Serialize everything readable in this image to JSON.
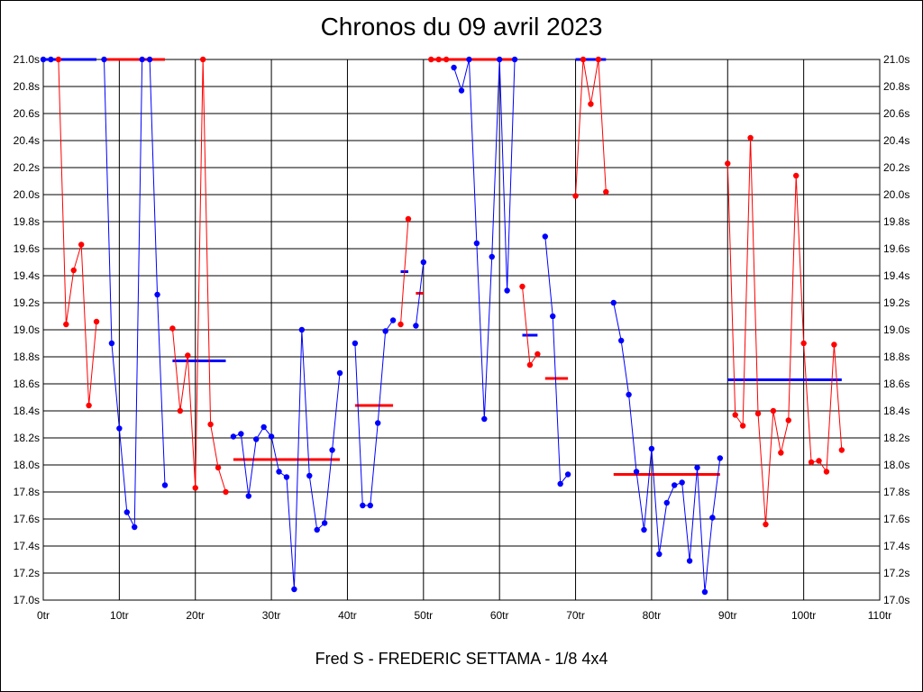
{
  "chart_data": {
    "type": "line",
    "title": "Chronos du 09 avril 2023",
    "footer": "Fred S - FREDERIC SETTAMA - 1/8 4x4",
    "xlim": [
      0,
      110
    ],
    "ylim": [
      17.0,
      21.0
    ],
    "x_ticks": [
      0,
      10,
      20,
      30,
      40,
      50,
      60,
      70,
      80,
      90,
      100,
      110
    ],
    "x_tick_labels": [
      "0tr",
      "10tr",
      "20tr",
      "30tr",
      "40tr",
      "50tr",
      "60tr",
      "70tr",
      "80tr",
      "90tr",
      "100tr",
      "110tr"
    ],
    "y_ticks": [
      17.0,
      17.2,
      17.4,
      17.6,
      17.8,
      18.0,
      18.2,
      18.4,
      18.6,
      18.8,
      19.0,
      19.2,
      19.4,
      19.6,
      19.8,
      20.0,
      20.2,
      20.4,
      20.6,
      20.8,
      21.0
    ],
    "y_tick_labels": [
      "17.0s",
      "17.2s",
      "17.4s",
      "17.6s",
      "17.8s",
      "18.0s",
      "18.2s",
      "18.4s",
      "18.6s",
      "18.8s",
      "19.0s",
      "19.2s",
      "19.4s",
      "19.6s",
      "19.8s",
      "20.0s",
      "20.2s",
      "20.4s",
      "20.6s",
      "20.8s",
      "21.0s"
    ],
    "grid": true,
    "colors": {
      "red": "#ff0000",
      "blue": "#0000ff"
    },
    "series": [
      {
        "color": "#0000ff",
        "points": [
          [
            0,
            21.0
          ],
          [
            1,
            21.0
          ]
        ]
      },
      {
        "color": "#ff0000",
        "points": [
          [
            2,
            21.0
          ],
          [
            3,
            19.04
          ],
          [
            4,
            19.44
          ],
          [
            5,
            19.63
          ],
          [
            6,
            18.44
          ],
          [
            7,
            19.06
          ]
        ]
      },
      {
        "color": "#0000ff",
        "points": [
          [
            8,
            21.0
          ],
          [
            9,
            18.9
          ],
          [
            10,
            18.27
          ],
          [
            11,
            17.65
          ],
          [
            12,
            17.54
          ],
          [
            13,
            21.0
          ],
          [
            14,
            21.0
          ],
          [
            15,
            19.26
          ],
          [
            16,
            17.85
          ]
        ]
      },
      {
        "color": "#ff0000",
        "points": [
          [
            17,
            19.01
          ],
          [
            18,
            18.4
          ],
          [
            19,
            18.81
          ],
          [
            20,
            17.83
          ],
          [
            21,
            21.0
          ],
          [
            22,
            18.3
          ],
          [
            23,
            17.98
          ],
          [
            24,
            17.8
          ]
        ]
      },
      {
        "color": "#0000ff",
        "points": [
          [
            25,
            18.21
          ],
          [
            26,
            18.23
          ],
          [
            27,
            17.77
          ],
          [
            28,
            18.19
          ],
          [
            29,
            18.28
          ],
          [
            30,
            18.21
          ],
          [
            31,
            17.95
          ],
          [
            32,
            17.91
          ],
          [
            33,
            17.08
          ],
          [
            34,
            19.0
          ],
          [
            35,
            17.92
          ],
          [
            36,
            17.52
          ],
          [
            37,
            17.57
          ],
          [
            38,
            18.11
          ],
          [
            39,
            18.68
          ]
        ]
      },
      {
        "color": "#0000ff",
        "points": [
          [
            41,
            18.9
          ],
          [
            42,
            17.7
          ],
          [
            43,
            17.7
          ],
          [
            44,
            18.31
          ],
          [
            45,
            18.99
          ],
          [
            46,
            19.07
          ]
        ]
      },
      {
        "color": "#ff0000",
        "points": [
          [
            47,
            19.04
          ],
          [
            48,
            19.82
          ]
        ]
      },
      {
        "color": "#0000ff",
        "points": [
          [
            49,
            19.03
          ],
          [
            50,
            19.5
          ]
        ]
      },
      {
        "color": "#ff0000",
        "points": [
          [
            51,
            21.0
          ],
          [
            52,
            21.0
          ],
          [
            53,
            21.0
          ]
        ]
      },
      {
        "color": "#0000ff",
        "points": [
          [
            54,
            20.94
          ],
          [
            55,
            20.77
          ],
          [
            56,
            21.0
          ],
          [
            57,
            19.64
          ],
          [
            58,
            18.34
          ],
          [
            59,
            19.54
          ],
          [
            60,
            21.0
          ],
          [
            61,
            19.29
          ],
          [
            62,
            21.0
          ]
        ]
      },
      {
        "color": "#ff0000",
        "points": [
          [
            63,
            19.32
          ],
          [
            64,
            18.74
          ],
          [
            65,
            18.82
          ]
        ]
      },
      {
        "color": "#0000ff",
        "points": [
          [
            66,
            19.69
          ],
          [
            67,
            19.1
          ],
          [
            68,
            17.86
          ],
          [
            69,
            17.93
          ]
        ]
      },
      {
        "color": "#ff0000",
        "points": [
          [
            70,
            19.99
          ],
          [
            71,
            21.0
          ],
          [
            72,
            20.67
          ],
          [
            73,
            21.0
          ],
          [
            74,
            20.02
          ]
        ]
      },
      {
        "color": "#0000ff",
        "points": [
          [
            75,
            19.2
          ],
          [
            76,
            18.92
          ],
          [
            77,
            18.52
          ],
          [
            78,
            17.95
          ],
          [
            79,
            17.52
          ],
          [
            80,
            18.12
          ],
          [
            81,
            17.34
          ],
          [
            82,
            17.72
          ],
          [
            83,
            17.85
          ],
          [
            84,
            17.87
          ],
          [
            85,
            17.29
          ],
          [
            86,
            17.98
          ],
          [
            87,
            17.06
          ],
          [
            88,
            17.61
          ],
          [
            89,
            18.05
          ]
        ]
      },
      {
        "color": "#ff0000",
        "points": [
          [
            90,
            20.23
          ],
          [
            91,
            18.37
          ],
          [
            92,
            18.29
          ],
          [
            93,
            20.42
          ],
          [
            94,
            18.38
          ],
          [
            95,
            17.56
          ],
          [
            96,
            18.4
          ],
          [
            97,
            18.09
          ],
          [
            98,
            18.33
          ],
          [
            99,
            20.14
          ],
          [
            100,
            18.9
          ],
          [
            101,
            18.02
          ],
          [
            102,
            18.03
          ],
          [
            103,
            17.95
          ],
          [
            104,
            18.89
          ],
          [
            105,
            18.11
          ]
        ]
      }
    ],
    "averages": [
      {
        "color": "#0000ff",
        "x0": 0,
        "x1": 7,
        "y": 21.0
      },
      {
        "color": "#ff0000",
        "x0": 8,
        "x1": 16,
        "y": 21.0
      },
      {
        "color": "#0000ff",
        "x0": 17,
        "x1": 24,
        "y": 18.77
      },
      {
        "color": "#ff0000",
        "x0": 25,
        "x1": 39,
        "y": 18.04
      },
      {
        "color": "#ff0000",
        "x0": 41,
        "x1": 46,
        "y": 18.44
      },
      {
        "color": "#0000ff",
        "x0": 47,
        "x1": 48,
        "y": 19.43
      },
      {
        "color": "#ff0000",
        "x0": 49,
        "x1": 50,
        "y": 19.27
      },
      {
        "color": "#ff0000",
        "x0": 51,
        "x1": 62,
        "y": 21.0
      },
      {
        "color": "#0000ff",
        "x0": 63,
        "x1": 65,
        "y": 18.96
      },
      {
        "color": "#ff0000",
        "x0": 66,
        "x1": 69,
        "y": 18.64
      },
      {
        "color": "#0000ff",
        "x0": 70,
        "x1": 74,
        "y": 21.0
      },
      {
        "color": "#ff0000",
        "x0": 75,
        "x1": 89,
        "y": 17.93
      },
      {
        "color": "#0000ff",
        "x0": 90,
        "x1": 105,
        "y": 18.63
      }
    ]
  }
}
